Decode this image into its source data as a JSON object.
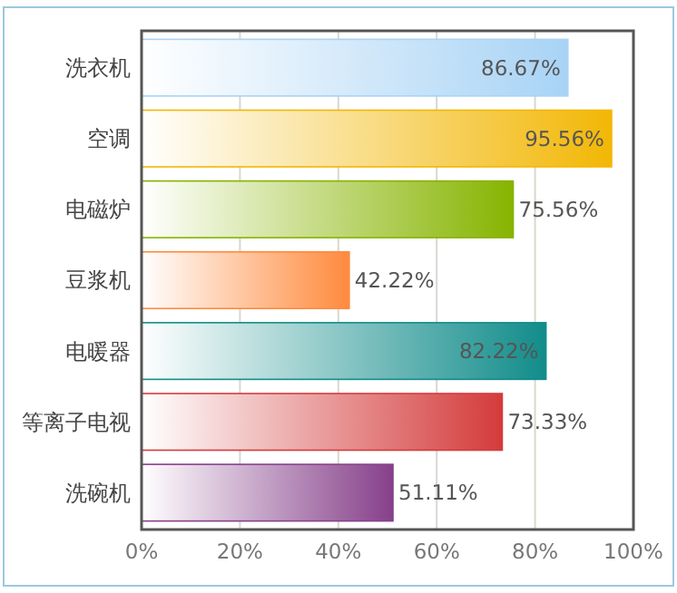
{
  "chart_data": {
    "type": "bar",
    "orientation": "horizontal",
    "categories": [
      "洗衣机",
      "空调",
      "电磁炉",
      "豆浆机",
      "电暖器",
      "等离子电视",
      "洗碗机"
    ],
    "values": [
      86.67,
      95.56,
      75.56,
      42.22,
      82.22,
      73.33,
      51.11
    ],
    "colors": [
      "#a8d3f5",
      "#f2b705",
      "#86b400",
      "#ff8a3d",
      "#118c8a",
      "#d43b3b",
      "#86408a"
    ],
    "value_labels": [
      "86.67%",
      "95.56%",
      "75.56%",
      "42.22%",
      "82.22%",
      "73.33%",
      "51.11%"
    ],
    "xlim": [
      0,
      100
    ],
    "xticks": [
      {
        "value": 0,
        "label": "0%"
      },
      {
        "value": 20,
        "label": "20%"
      },
      {
        "value": 40,
        "label": "40%"
      },
      {
        "value": 60,
        "label": "60%"
      },
      {
        "value": 80,
        "label": "80%"
      },
      {
        "value": 100,
        "label": "100%"
      }
    ],
    "grid": "x"
  }
}
